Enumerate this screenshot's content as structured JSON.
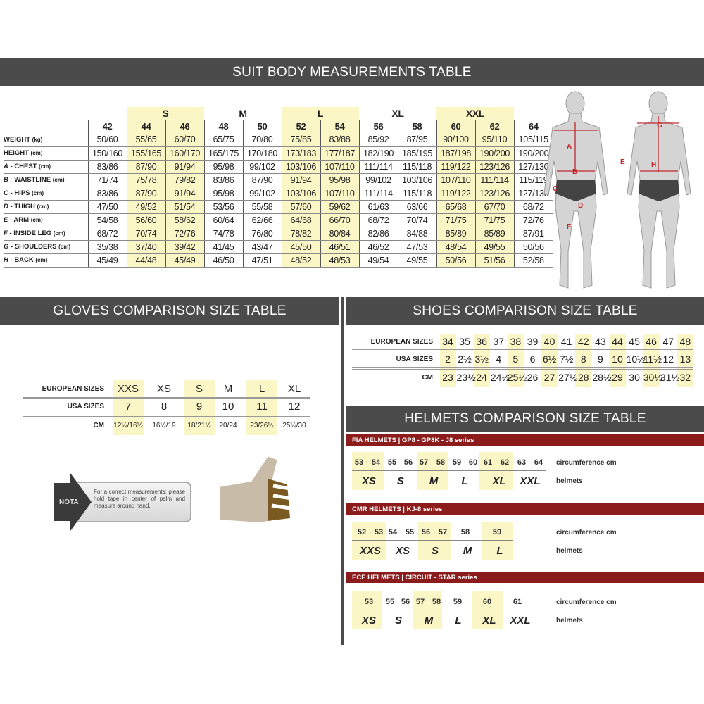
{
  "colors": {
    "header_bg": "#4b4b4b",
    "highlight": "#fbf6c6",
    "helmet_bar": "#8c1c1c"
  },
  "suit": {
    "title": "SUIT BODY MEASUREMENTS TABLE",
    "groups": [
      {
        "label": "S",
        "cols": [
          44,
          46
        ]
      },
      {
        "label": "M",
        "cols": [
          48,
          50
        ]
      },
      {
        "label": "L",
        "cols": [
          52,
          54
        ]
      },
      {
        "label": "XL",
        "cols": [
          56,
          58
        ]
      },
      {
        "label": "XXL",
        "cols": [
          60,
          62
        ]
      }
    ],
    "sizes": [
      "42",
      "44",
      "46",
      "48",
      "50",
      "52",
      "54",
      "56",
      "58",
      "60",
      "62",
      "64"
    ],
    "rows": [
      {
        "letter": "",
        "label": "WEIGHT",
        "unit": "(kg)",
        "values": [
          "50/60",
          "55/65",
          "60/70",
          "65/75",
          "70/80",
          "75/85",
          "83/88",
          "85/92",
          "87/95",
          "90/100",
          "95/110",
          "105/115"
        ]
      },
      {
        "letter": "",
        "label": "HEIGHT",
        "unit": "(cm)",
        "values": [
          "150/160",
          "155/165",
          "160/170",
          "165/175",
          "170/180",
          "173/183",
          "177/187",
          "182/190",
          "185/195",
          "187/198",
          "190/200",
          "190/200"
        ]
      },
      {
        "letter": "A",
        "label": " - CHEST",
        "unit": "(cm)",
        "values": [
          "83/86",
          "87/90",
          "91/94",
          "95/98",
          "99/102",
          "103/106",
          "107/110",
          "111/114",
          "115/118",
          "119/122",
          "123/126",
          "127/130"
        ]
      },
      {
        "letter": "B",
        "label": " - WAISTLINE",
        "unit": "(cm)",
        "values": [
          "71/74",
          "75/78",
          "79/82",
          "83/86",
          "87/90",
          "91/94",
          "95/98",
          "99/102",
          "103/106",
          "107/110",
          "111/114",
          "115/119"
        ]
      },
      {
        "letter": "C",
        "label": " - HIPS",
        "unit": "(cm)",
        "values": [
          "83/86",
          "87/90",
          "91/94",
          "95/98",
          "99/102",
          "103/106",
          "107/110",
          "111/114",
          "115/118",
          "119/122",
          "123/126",
          "127/130"
        ]
      },
      {
        "letter": "D",
        "label": " - THIGH",
        "unit": "(cm)",
        "values": [
          "47/50",
          "49/52",
          "51/54",
          "53/56",
          "55/58",
          "57/60",
          "59/62",
          "61/63",
          "63/66",
          "65/68",
          "67/70",
          "68/72"
        ]
      },
      {
        "letter": "E",
        "label": " - ARM",
        "unit": "(cm)",
        "values": [
          "54/58",
          "56/60",
          "58/62",
          "60/64",
          "62/66",
          "64/68",
          "66/70",
          "68/72",
          "70/74",
          "71/75",
          "71/75",
          "72/76"
        ]
      },
      {
        "letter": "F",
        "label": " - INSIDE LEG",
        "unit": "(cm)",
        "values": [
          "68/72",
          "70/74",
          "72/76",
          "74/78",
          "76/80",
          "78/82",
          "80/84",
          "82/86",
          "84/88",
          "85/89",
          "85/89",
          "87/91"
        ]
      },
      {
        "letter": "G",
        "label": " - SHOULDERS",
        "unit": "(cm)",
        "values": [
          "35/38",
          "37/40",
          "39/42",
          "41/45",
          "43/47",
          "45/50",
          "46/51",
          "46/52",
          "47/53",
          "48/54",
          "49/55",
          "50/56"
        ]
      },
      {
        "letter": "H",
        "label": " - BACK",
        "unit": "(cm)",
        "values": [
          "45/49",
          "44/48",
          "45/49",
          "46/50",
          "47/51",
          "48/52",
          "48/53",
          "49/54",
          "49/55",
          "50/56",
          "51/56",
          "52/58"
        ]
      }
    ],
    "figure_letters": [
      "A",
      "B",
      "C",
      "D",
      "F",
      "G",
      "E",
      "H"
    ]
  },
  "gloves": {
    "title": "GLOVES COMPARISON SIZE TABLE",
    "row_labels": [
      "EUROPEAN SIZES",
      "USA SIZES",
      "CM"
    ],
    "european": [
      "XXS",
      "XS",
      "S",
      "M",
      "L",
      "XL"
    ],
    "usa": [
      "7",
      "8",
      "9",
      "10",
      "11",
      "12"
    ],
    "cm": [
      "12½/16½",
      "16½/19",
      "18/21½",
      "20/24",
      "23/26½",
      "25½/30"
    ],
    "highlighted": [
      0,
      2,
      4
    ],
    "nota_label": "NOTA",
    "nota_text": "For a correct measurements: please hold tape in center of palm and measure around hand."
  },
  "shoes": {
    "title": "SHOES COMPARISON SIZE TABLE",
    "row_labels": [
      "EUROPEAN SIZES",
      "USA SIZES",
      "CM"
    ],
    "european": [
      "34",
      "35",
      "36",
      "37",
      "38",
      "39",
      "40",
      "41",
      "42",
      "43",
      "44",
      "45",
      "46",
      "47",
      "48"
    ],
    "usa": [
      "2",
      "2½",
      "3½",
      "4",
      "5",
      "6",
      "6½",
      "7½",
      "8",
      "9",
      "10",
      "10½",
      "11½",
      "12",
      "13"
    ],
    "cm": [
      "23",
      "23½",
      "24",
      "24½",
      "25½",
      "26",
      "27",
      "27½",
      "28",
      "28½",
      "29",
      "30",
      "30½",
      "31½",
      "32"
    ],
    "highlighted": [
      0,
      2,
      4,
      6,
      8,
      10,
      12,
      14
    ]
  },
  "helmets": {
    "title": "HELMETS COMPARISON SIZE TABLE",
    "circ_label": "circumference cm",
    "size_label": "helmets",
    "series": [
      {
        "name": "FIA HELMETS | GP8 - GP8K - J8 series",
        "circumference": [
          "53",
          "54",
          "55",
          "56",
          "57",
          "58",
          "59",
          "60",
          "61",
          "62",
          "63",
          "64"
        ],
        "sizes": [
          "XS",
          "S",
          "M",
          "L",
          "XL",
          "XXL"
        ]
      },
      {
        "name": "CMR HELMETS | KJ-8 series",
        "circumference": [
          "52",
          "53",
          "54",
          "55",
          "56",
          "57",
          "58",
          "59"
        ],
        "sizes": [
          "XXS",
          "XS",
          "S",
          "M",
          "L"
        ]
      },
      {
        "name": "ECE HELMETS | CIRCUIT - STAR series",
        "circumference": [
          "53",
          "55",
          "56",
          "57",
          "58",
          "59",
          "60",
          "61"
        ],
        "sizes": [
          "XS",
          "S",
          "M",
          "L",
          "XL",
          "XXL"
        ]
      }
    ]
  }
}
